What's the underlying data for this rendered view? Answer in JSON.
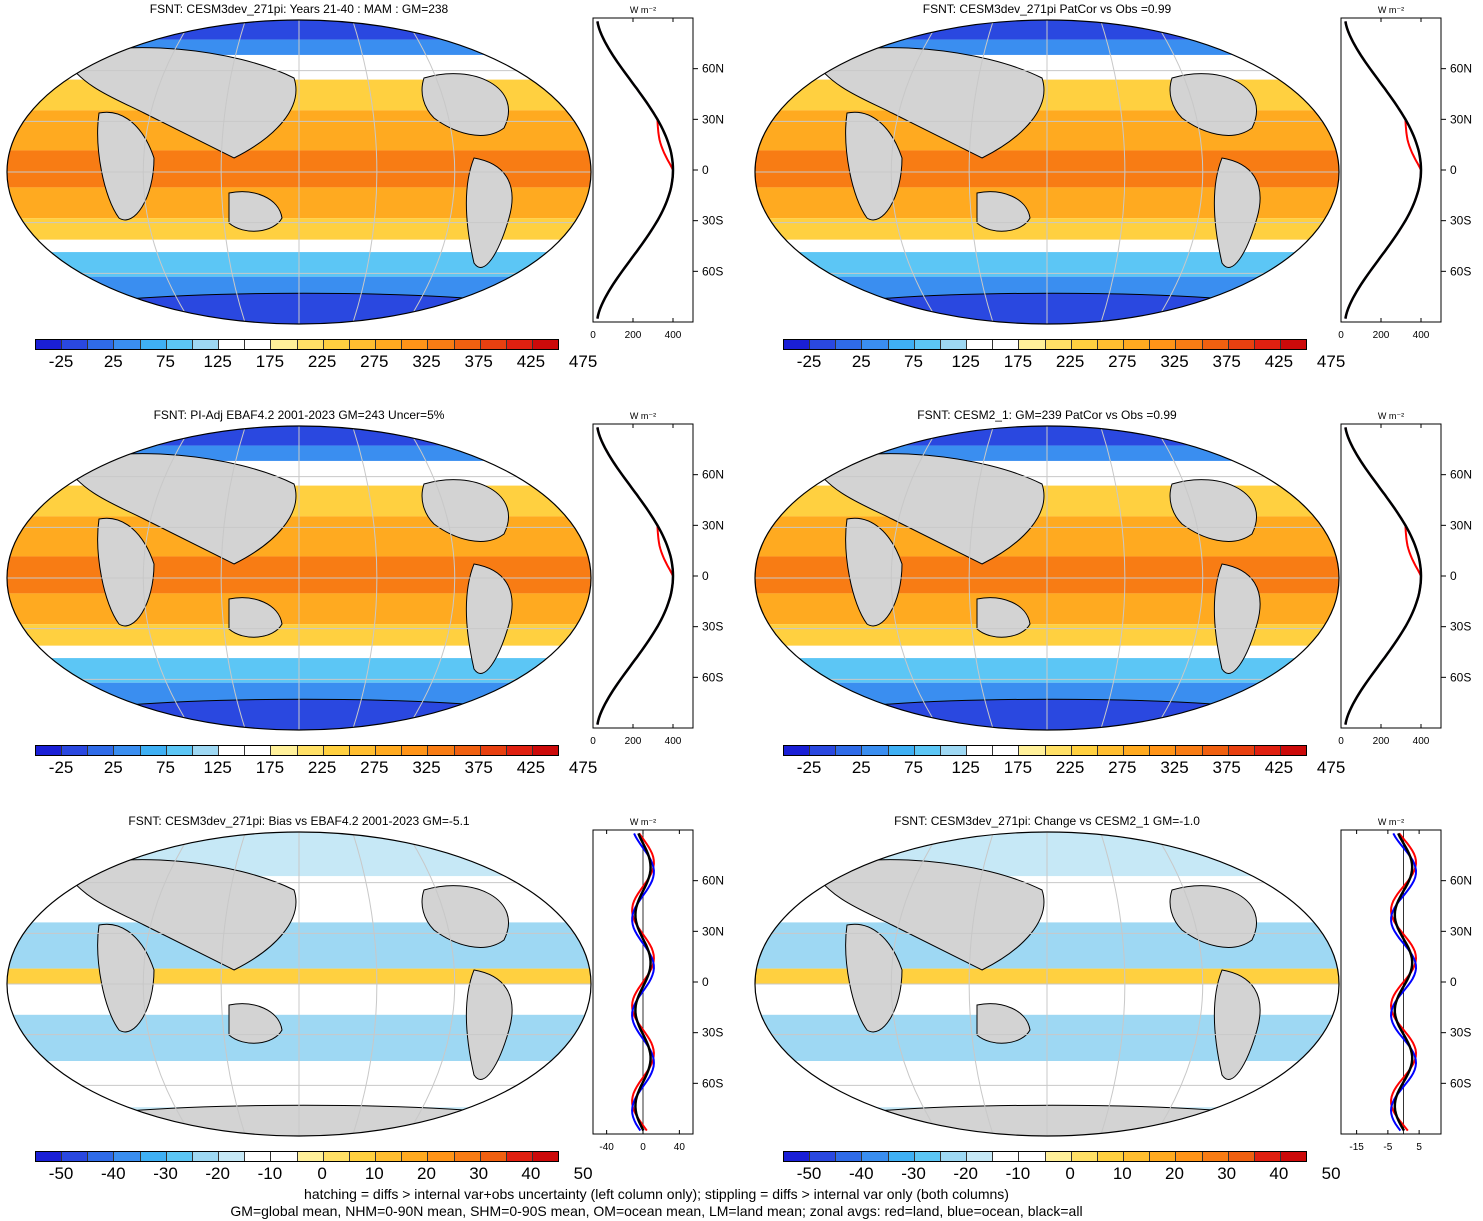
{
  "panels": [
    {
      "title": "FSNT: CESM3dev_271pi: Years 21-40 : MAM : GM=238",
      "type": "abs"
    },
    {
      "title": "FSNT: CESM3dev_271pi PatCor vs Obs =0.99",
      "type": "abs"
    },
    {
      "title": "FSNT: PI-Adj EBAF4.2 2001-2023 GM=243 Uncer=5%",
      "type": "abs"
    },
    {
      "title": "FSNT: CESM2_1: GM=239 PatCor vs Obs =0.99",
      "type": "abs"
    },
    {
      "title": "FSNT: CESM3dev_271pi: Bias vs EBAF4.2 2001-2023 GM=-5.1",
      "type": "diff"
    },
    {
      "title": "FSNT: CESM3dev_271pi: Change vs CESM2_1 GM=-1.0",
      "type": "diff"
    }
  ],
  "colorbar_abs": {
    "labels": [
      "-25",
      "25",
      "75",
      "125",
      "175",
      "225",
      "275",
      "325",
      "375",
      "425",
      "475"
    ],
    "colors": [
      "#1a1fd6",
      "#2a48e0",
      "#2f6be8",
      "#3a8ef0",
      "#3fb0f4",
      "#5cc6f5",
      "#9ed8f3",
      "#ffffff",
      "#ffffff",
      "#fff09a",
      "#ffe066",
      "#ffd040",
      "#ffbe30",
      "#ffaa20",
      "#ff9418",
      "#f87c14",
      "#f06010",
      "#e84010",
      "#e02010",
      "#cc0a0a"
    ]
  },
  "colorbar_diff": {
    "labels": [
      "-50",
      "-40",
      "-30",
      "-20",
      "-10",
      "0",
      "10",
      "20",
      "30",
      "40",
      "50"
    ],
    "colors": [
      "#1a1fd6",
      "#2a48e0",
      "#2f6be8",
      "#3a8ef0",
      "#3fb0f4",
      "#5cc6f5",
      "#9ed8f3",
      "#c6e8f6",
      "#ffffff",
      "#ffffff",
      "#fff09a",
      "#ffe066",
      "#ffd040",
      "#ffbe30",
      "#ffaa20",
      "#ff9418",
      "#f87c14",
      "#f06010",
      "#e02010",
      "#cc0a0a"
    ]
  },
  "zonal_axis": {
    "unit": "W m⁻²",
    "lat_labels": [
      "60N",
      "30N",
      "0",
      "30S",
      "60S"
    ],
    "x_abs": [
      "0",
      "200",
      "400"
    ],
    "x_bias": [
      "-40",
      "0",
      "40"
    ],
    "x_change": [
      "-15",
      "-5",
      "5"
    ]
  },
  "footer": {
    "line1": "hatching = diffs > internal var+obs uncertainty (left column only); stippling = diffs > internal var only (both columns)",
    "line2": "GM=global mean, NHM=0-90N mean, SHM=0-90S mean, OM=ocean mean, LM=land mean; zonal avgs: red=land, blue=ocean, black=all"
  },
  "colors": {
    "land": "#d3d3d3",
    "land_line": "#ff0000",
    "ocean_line": "#0000ff",
    "all_line": "#000000",
    "grid": "#c8c8c8"
  }
}
